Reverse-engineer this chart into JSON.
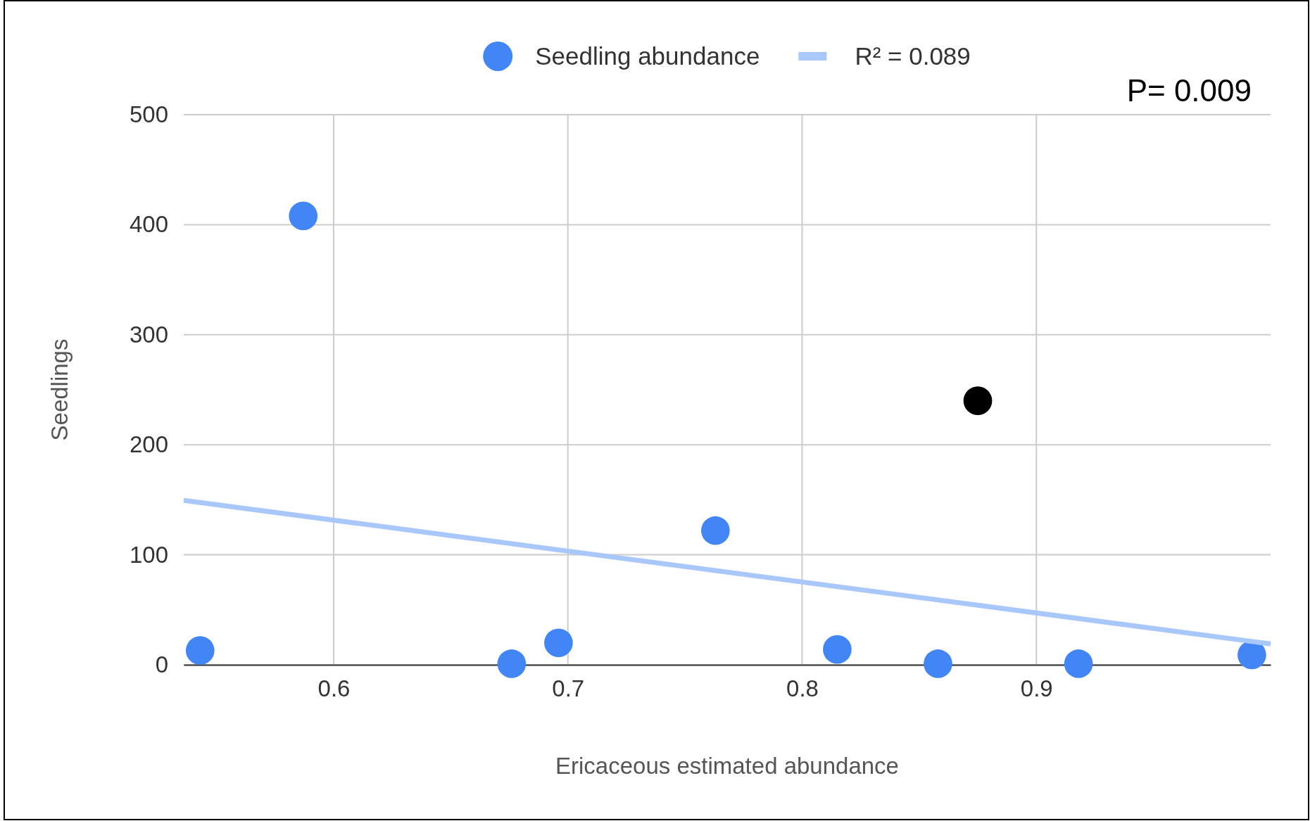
{
  "chart_data": {
    "type": "scatter",
    "xlabel": "Ericaceous estimated abundance",
    "ylabel": "Seedlings",
    "xlim": [
      0.536,
      1.0
    ],
    "xticks": [
      0.6,
      0.7,
      0.8,
      0.9
    ],
    "ylim": [
      0,
      500
    ],
    "yticks": [
      0,
      100,
      200,
      300,
      400,
      500
    ],
    "grid": true,
    "legend": "top",
    "annotations": [
      "P= 0.009"
    ],
    "series": [
      {
        "name": "Seedling abundance",
        "color": "#4285f4",
        "x": [
          0.543,
          0.587,
          0.676,
          0.696,
          0.763,
          0.815,
          0.858,
          0.918,
          0.992
        ],
        "values": [
          13,
          408,
          1,
          20,
          122,
          14,
          1,
          1,
          9
        ],
        "marker": "circle"
      },
      {
        "color": "#000000",
        "x": [
          0.875
        ],
        "values": [
          240
        ],
        "marker": "circle"
      },
      {
        "name": "R² = 0.089",
        "type": "line",
        "color": "#a8c7fa",
        "x": [
          0.536,
          1.0
        ],
        "values": [
          149.5,
          19
        ]
      }
    ]
  }
}
